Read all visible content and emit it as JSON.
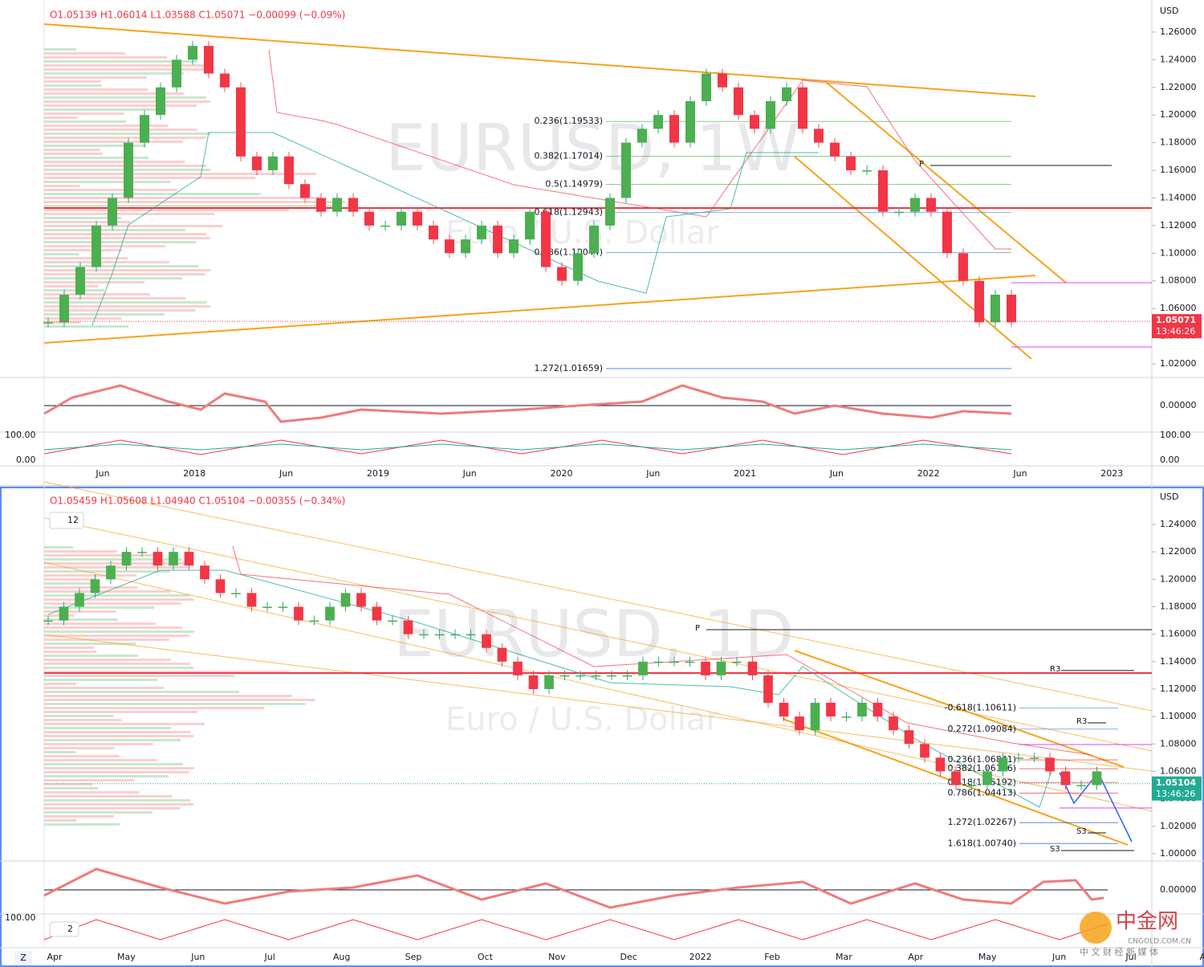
{
  "top": {
    "header": "O1.05139 H1.06014 L1.03588 C1.05071 −0.00099 (−0.09%)",
    "watermark": "EURUSD, 1W",
    "watermark_sub": "Euro / U.S. Dollar",
    "currency": "USD",
    "ylim": [
      1.0101,
      1.2832
    ],
    "yticks": [
      {
        "value": 1.02,
        "label": "1.02000"
      },
      {
        "value": 1.04,
        "label": "1.04000"
      },
      {
        "value": 1.06,
        "label": "1.06000"
      },
      {
        "value": 1.08,
        "label": "1.08000"
      },
      {
        "value": 1.1,
        "label": "1.10000"
      },
      {
        "value": 1.12,
        "label": "1.12000"
      },
      {
        "value": 1.14,
        "label": "1.14000"
      },
      {
        "value": 1.16,
        "label": "1.16000"
      },
      {
        "value": 1.18,
        "label": "1.18000"
      },
      {
        "value": 1.2,
        "label": "1.20000"
      },
      {
        "value": 1.22,
        "label": "1.22000"
      },
      {
        "value": 1.24,
        "label": "1.24000"
      },
      {
        "value": 1.26,
        "label": "1.26000"
      }
    ],
    "fibs": [
      {
        "label": "0.236(1.19533)",
        "value": 1.19533
      },
      {
        "label": "0.382(1.17014)",
        "value": 1.17014
      },
      {
        "label": "0.5(1.14979)",
        "value": 1.14979
      },
      {
        "label": "0.618(1.12943)",
        "value": 1.12943
      },
      {
        "label": "0.786(1.10044)",
        "value": 1.10044
      },
      {
        "label": "1.272(1.01659)",
        "value": 1.01659
      }
    ],
    "pivots": [
      {
        "label": "P",
        "value": 1.1635
      }
    ],
    "price_tag": {
      "value": 1.05071,
      "label": "1.05071"
    },
    "countdown": "13:46:26",
    "osc_zero": "0.00000",
    "osc_hi": "100.00",
    "osc_lo": "0.00",
    "osc_lo_axis": "0.00",
    "osc_hi_axis": "100.00",
    "time_labels": [
      "Jun",
      "2018",
      "Jun",
      "2019",
      "Jun",
      "2020",
      "Jun",
      "2021",
      "Jun",
      "2022",
      "Jun",
      "2023"
    ],
    "close": [
      1.05,
      1.07,
      1.09,
      1.12,
      1.14,
      1.18,
      1.2,
      1.22,
      1.24,
      1.25,
      1.23,
      1.22,
      1.17,
      1.16,
      1.17,
      1.15,
      1.14,
      1.13,
      1.14,
      1.13,
      1.12,
      1.12,
      1.13,
      1.12,
      1.11,
      1.1,
      1.11,
      1.12,
      1.1,
      1.11,
      1.13,
      1.09,
      1.08,
      1.1,
      1.12,
      1.14,
      1.18,
      1.19,
      1.2,
      1.18,
      1.21,
      1.23,
      1.22,
      1.2,
      1.19,
      1.21,
      1.22,
      1.19,
      1.18,
      1.17,
      1.16,
      1.16,
      1.13,
      1.13,
      1.14,
      1.13,
      1.1,
      1.08,
      1.05,
      1.07,
      1.05
    ]
  },
  "bottom": {
    "header": "O1.05459 H1.05608 L1.04940 C1.05104 −0.00355 (−0.34%)",
    "interval": "12",
    "watermark": "EURUSD, 1D",
    "watermark_sub": "Euro / U.S. Dollar",
    "currency": "USD",
    "ylim": [
      0.9947,
      1.2669
    ],
    "yticks": [
      {
        "value": 1.0,
        "label": "1.00000"
      },
      {
        "value": 1.02,
        "label": "1.02000"
      },
      {
        "value": 1.04,
        "label": "1.04000"
      },
      {
        "value": 1.06,
        "label": "1.06000"
      },
      {
        "value": 1.08,
        "label": "1.08000"
      },
      {
        "value": 1.1,
        "label": "1.10000"
      },
      {
        "value": 1.12,
        "label": "1.12000"
      },
      {
        "value": 1.14,
        "label": "1.14000"
      },
      {
        "value": 1.16,
        "label": "1.16000"
      },
      {
        "value": 1.18,
        "label": "1.18000"
      },
      {
        "value": 1.2,
        "label": "1.20000"
      },
      {
        "value": 1.22,
        "label": "1.22000"
      },
      {
        "value": 1.24,
        "label": "1.24000"
      }
    ],
    "fibs": [
      {
        "label": "-0.618(1.10611)",
        "value": 1.10611
      },
      {
        "label": "0.272(1.09084)",
        "value": 1.09084
      },
      {
        "label": "0.236(1.06841)",
        "value": 1.06841
      },
      {
        "label": "0.382(1.06196)",
        "value": 1.06196
      },
      {
        "label": "0.618(1.05192)",
        "value": 1.05192
      },
      {
        "label": "0.786(1.04413)",
        "value": 1.04413
      },
      {
        "label": "1.272(1.02267)",
        "value": 1.02267
      },
      {
        "label": "1.618(1.00740)",
        "value": 1.0074
      }
    ],
    "pivots": [
      {
        "label": "P",
        "value": 1.1633
      },
      {
        "label": "R3",
        "value": 1.1335
      },
      {
        "label": "R3",
        "value": 1.0954
      },
      {
        "label": "S3",
        "value": 1.0152
      },
      {
        "label": "S3",
        "value": 1.0023
      }
    ],
    "price_tag": {
      "value": 1.05104,
      "label": "1.05104"
    },
    "countdown": "13:46:26",
    "osc_zero": "0.00000",
    "osc_hi": "100.00",
    "osc_interval": "2",
    "time_labels": [
      "Apr",
      "May",
      "Jun",
      "Jul",
      "Aug",
      "Sep",
      "Oct",
      "Nov",
      "Dec",
      "2022",
      "Feb",
      "Mar",
      "Apr",
      "May",
      "Jun",
      "Jul",
      "A"
    ],
    "close": [
      1.17,
      1.18,
      1.19,
      1.2,
      1.21,
      1.22,
      1.22,
      1.21,
      1.22,
      1.21,
      1.2,
      1.19,
      1.19,
      1.18,
      1.18,
      1.18,
      1.17,
      1.17,
      1.18,
      1.19,
      1.18,
      1.17,
      1.17,
      1.16,
      1.16,
      1.16,
      1.16,
      1.16,
      1.15,
      1.14,
      1.13,
      1.12,
      1.13,
      1.13,
      1.13,
      1.13,
      1.13,
      1.13,
      1.14,
      1.14,
      1.14,
      1.14,
      1.13,
      1.14,
      1.14,
      1.13,
      1.11,
      1.1,
      1.09,
      1.11,
      1.1,
      1.1,
      1.11,
      1.1,
      1.09,
      1.08,
      1.07,
      1.06,
      1.05,
      1.05,
      1.06,
      1.07,
      1.07,
      1.07,
      1.06,
      1.05,
      1.05,
      1.06
    ]
  },
  "footer": {
    "zoom": "Z",
    "logo": "中金网",
    "logo_sub": "CNGOLD.COM.CN",
    "logo_tag": "中 文 财 经 新 媒 体"
  }
}
